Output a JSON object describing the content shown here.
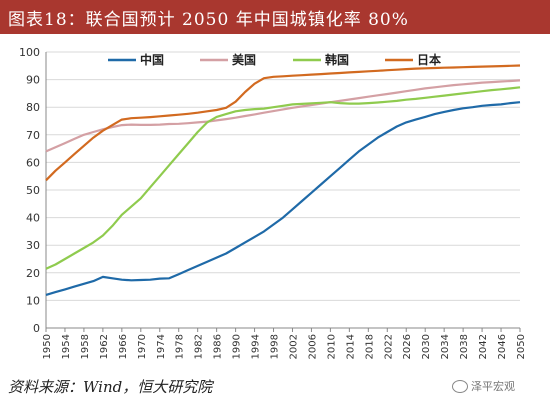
{
  "title": "图表18：联合国预计 2050 年中国城镇化率 80%",
  "source": "资料来源：Wind，恒大研究院",
  "watermark": "泽平宏观",
  "chart_data": {
    "type": "line",
    "x": [
      1950,
      1952,
      1954,
      1956,
      1958,
      1960,
      1962,
      1964,
      1966,
      1968,
      1970,
      1972,
      1974,
      1976,
      1978,
      1980,
      1982,
      1984,
      1986,
      1988,
      1990,
      1992,
      1994,
      1996,
      1998,
      2000,
      2002,
      2004,
      2006,
      2008,
      2010,
      2012,
      2014,
      2016,
      2018,
      2020,
      2022,
      2024,
      2026,
      2028,
      2030,
      2032,
      2034,
      2036,
      2038,
      2040,
      2042,
      2044,
      2046,
      2048,
      2050
    ],
    "x_tick_labels": [
      "1950",
      "1954",
      "1958",
      "1962",
      "1966",
      "1970",
      "1974",
      "1978",
      "1982",
      "1986",
      "1990",
      "1994",
      "1998",
      "2002",
      "2006",
      "2010",
      "2014",
      "2018",
      "2022",
      "2026",
      "2030",
      "2034",
      "2038",
      "2042",
      "2046",
      "2050"
    ],
    "ylim": [
      0,
      100
    ],
    "yticks": [
      0,
      10,
      20,
      30,
      40,
      50,
      60,
      70,
      80,
      90,
      100
    ],
    "grid": "horizontal",
    "legend_position": "top",
    "series": [
      {
        "name": "中国",
        "color": "#1f6aa8",
        "values": [
          12,
          13,
          14,
          15,
          16,
          17,
          18.5,
          18,
          17.5,
          17.3,
          17.4,
          17.5,
          17.9,
          18,
          19.5,
          21,
          22.5,
          24,
          25.5,
          27,
          29,
          31,
          33,
          35,
          37.5,
          40,
          43,
          46,
          49,
          52,
          55,
          58,
          61,
          64,
          66.5,
          69,
          71,
          73,
          74.5,
          75.5,
          76.5,
          77.5,
          78.3,
          79,
          79.6,
          80,
          80.5,
          80.8,
          81,
          81.5,
          81.8
        ]
      },
      {
        "name": "美国",
        "color": "#d4a0a4",
        "values": [
          64,
          65.5,
          67,
          68.5,
          70,
          71,
          72,
          72.8,
          73.5,
          73.7,
          73.6,
          73.6,
          73.7,
          73.9,
          74,
          74.2,
          74.5,
          74.8,
          75.2,
          75.7,
          76.2,
          76.8,
          77.4,
          78,
          78.6,
          79.2,
          79.8,
          80.3,
          80.8,
          81.3,
          81.8,
          82.3,
          82.8,
          83.3,
          83.8,
          84.3,
          84.8,
          85.3,
          85.8,
          86.3,
          86.8,
          87.2,
          87.6,
          88,
          88.3,
          88.6,
          88.9,
          89.1,
          89.3,
          89.5,
          89.7
        ]
      },
      {
        "name": "韩国",
        "color": "#8fcb4e",
        "values": [
          21.5,
          23,
          25,
          27,
          29,
          31,
          33.5,
          37,
          41,
          44,
          47,
          51,
          55,
          59,
          63,
          67,
          71,
          74.5,
          76.5,
          77.5,
          78.5,
          79,
          79.3,
          79.5,
          80,
          80.5,
          81,
          81.2,
          81.4,
          81.6,
          81.8,
          81.5,
          81.3,
          81.3,
          81.5,
          81.7,
          82,
          82.3,
          82.7,
          83,
          83.4,
          83.8,
          84.2,
          84.6,
          85,
          85.4,
          85.8,
          86.2,
          86.5,
          86.8,
          87.2
        ]
      },
      {
        "name": "日本",
        "color": "#d26a20",
        "values": [
          53.5,
          57,
          60,
          63,
          66,
          69,
          71.5,
          73.5,
          75.5,
          76,
          76.2,
          76.4,
          76.7,
          77,
          77.3,
          77.6,
          78,
          78.5,
          79,
          79.8,
          82,
          85.5,
          88.5,
          90.5,
          91,
          91.2,
          91.4,
          91.6,
          91.8,
          92,
          92.2,
          92.4,
          92.6,
          92.8,
          93,
          93.2,
          93.4,
          93.6,
          93.8,
          94,
          94.1,
          94.2,
          94.3,
          94.4,
          94.5,
          94.6,
          94.7,
          94.8,
          94.9,
          95,
          95.1
        ]
      }
    ]
  }
}
